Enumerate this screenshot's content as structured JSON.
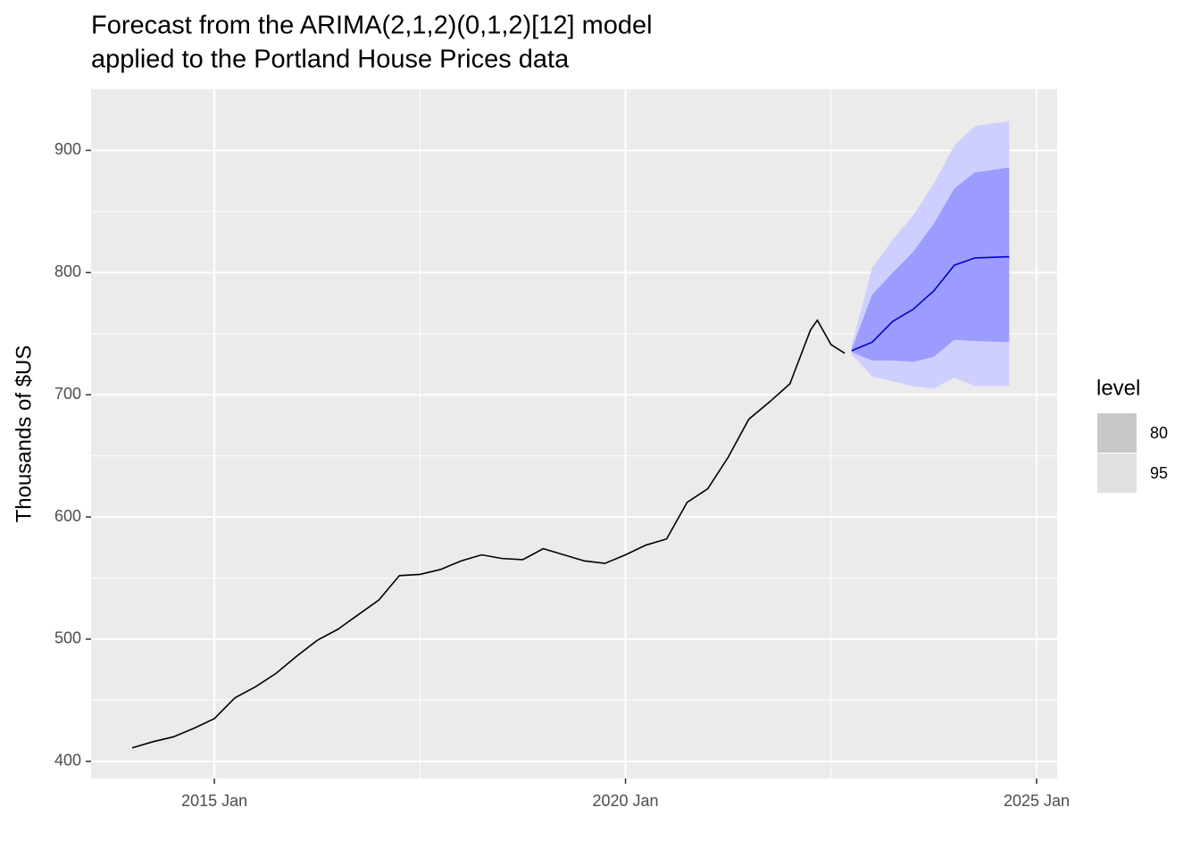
{
  "chart_data": {
    "type": "line",
    "title": [
      "Forecast from the ARIMA(2,1,2)(0,1,2)[12] model",
      "applied to the Portland House Prices data"
    ],
    "y_label": "Thousands of $US",
    "xlim": [
      "2013 Jul",
      "2025 Apr"
    ],
    "xticks": [
      "2015 Jan",
      "2020 Jan",
      "2025 Jan"
    ],
    "ylim": [
      386,
      950
    ],
    "yticks": [
      400,
      500,
      600,
      700,
      800,
      900
    ],
    "grid": true,
    "observed": {
      "color": "#000000",
      "x": [
        "2014 Jan",
        "2014 Apr",
        "2014 Jul",
        "2014 Oct",
        "2015 Jan",
        "2015 Apr",
        "2015 Jul",
        "2015 Oct",
        "2016 Jan",
        "2016 Apr",
        "2016 Jul",
        "2016 Oct",
        "2017 Jan",
        "2017 Apr",
        "2017 Jul",
        "2017 Oct",
        "2018 Jan",
        "2018 Apr",
        "2018 Jul",
        "2018 Oct",
        "2019 Jan",
        "2019 Apr",
        "2019 Jul",
        "2019 Oct",
        "2020 Jan",
        "2020 Apr",
        "2020 Jul",
        "2020 Oct",
        "2021 Jan",
        "2021 Apr",
        "2021 Jul",
        "2021 Oct",
        "2022 Jan",
        "2022 Apr",
        "2022 May",
        "2022 Jul",
        "2022 Sep"
      ],
      "values": [
        411,
        416,
        420,
        427,
        435,
        452,
        461,
        472,
        486,
        499,
        508,
        520,
        532,
        552,
        553,
        557,
        564,
        569,
        566,
        565,
        574,
        569,
        564,
        562,
        569,
        577,
        582,
        612,
        623,
        649,
        680,
        694,
        709,
        753,
        761,
        741,
        734
      ]
    },
    "forecast": {
      "color": "#0000cc",
      "x": [
        "2022 Oct",
        "2023 Jan",
        "2023 Apr",
        "2023 Jul",
        "2023 Oct",
        "2024 Jan",
        "2024 Apr",
        "2024 Sep"
      ],
      "mean": [
        736,
        743,
        760,
        770,
        785,
        806,
        812,
        813
      ],
      "legend_title": "level",
      "intervals": [
        {
          "level": 80,
          "color": "#9c9cff",
          "legend_color": "#c8c8c8",
          "lower": [
            735,
            728,
            728,
            727,
            731,
            745,
            744,
            743
          ],
          "upper": [
            737,
            782,
            800,
            817,
            840,
            869,
            882,
            886
          ]
        },
        {
          "level": 95,
          "color": "#cfcfff",
          "legend_color": "#e0e0e0",
          "lower": [
            733,
            715,
            711,
            707,
            705,
            714,
            707,
            707
          ],
          "upper": [
            740,
            804,
            827,
            847,
            873,
            904,
            920,
            924
          ]
        }
      ]
    }
  }
}
